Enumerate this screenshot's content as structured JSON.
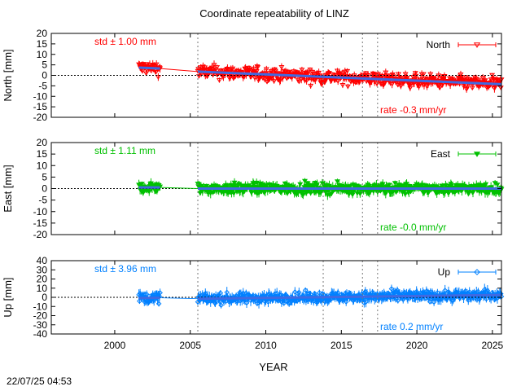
{
  "title": "Coordinate repeatability of LINZ",
  "xlabel": "YEAR",
  "timestamp": "22/07/25 04:53",
  "colors": {
    "north": "#ff0000",
    "east": "#00c000",
    "up": "#0080ff",
    "fit": "#4169e1"
  },
  "chart_data": {
    "type": "scatter",
    "title": "Coordinate repeatability of LINZ",
    "xlabel": "YEAR",
    "xlim": [
      1995.8,
      2025.6
    ],
    "xticks": [
      2000,
      2005,
      2010,
      2015,
      2020,
      2025
    ],
    "breaks": [
      2005.5,
      2013.8,
      2016.4,
      2017.4
    ],
    "panels": [
      {
        "key": "north",
        "name": "North",
        "ylabel": "North [mm]",
        "ylim": [
          -20,
          20
        ],
        "yticks": [
          20,
          15,
          10,
          5,
          0,
          -5,
          -10,
          -15,
          -20
        ],
        "std_label": "std ± 1.00 mm",
        "rate_label": "rate -0.3 mm/yr",
        "rate": -0.3,
        "marker": "triangle-down-open",
        "scatter": 2.2,
        "errbar": 1.5,
        "segments": [
          {
            "start": 2001.6,
            "end": 2003.0,
            "offset": 2.5
          },
          {
            "start": 2005.5,
            "end": 2025.6,
            "offset": 1.8
          }
        ]
      },
      {
        "key": "east",
        "name": "East",
        "ylabel": "East [mm]",
        "ylim": [
          -20,
          20
        ],
        "yticks": [
          20,
          15,
          10,
          5,
          0,
          -5,
          -10,
          -15,
          -20
        ],
        "std_label": "std ± 1.11 mm",
        "rate_label": "rate -0.0 mm/yr",
        "rate": 0.0,
        "marker": "triangle-down-filled",
        "scatter": 1.6,
        "errbar": 1.6,
        "segments": [
          {
            "start": 2001.6,
            "end": 2003.0,
            "offset": 0.5
          },
          {
            "start": 2005.5,
            "end": 2025.6,
            "offset": 0.0
          }
        ]
      },
      {
        "key": "up",
        "name": "Up",
        "ylabel": "Up [mm]",
        "ylim": [
          -40,
          40
        ],
        "yticks": [
          40,
          30,
          20,
          10,
          0,
          -10,
          -20,
          -30,
          -40
        ],
        "std_label": "std ± 3.96 mm",
        "rate_label": "rate  0.2 mm/yr",
        "rate": 0.2,
        "marker": "diamond-open",
        "scatter": 3.8,
        "errbar": 4.5,
        "segments": [
          {
            "start": 2001.6,
            "end": 2003.0,
            "offset": 0.0
          },
          {
            "start": 2005.5,
            "end": 2025.6,
            "offset": -1.5
          }
        ]
      }
    ]
  }
}
